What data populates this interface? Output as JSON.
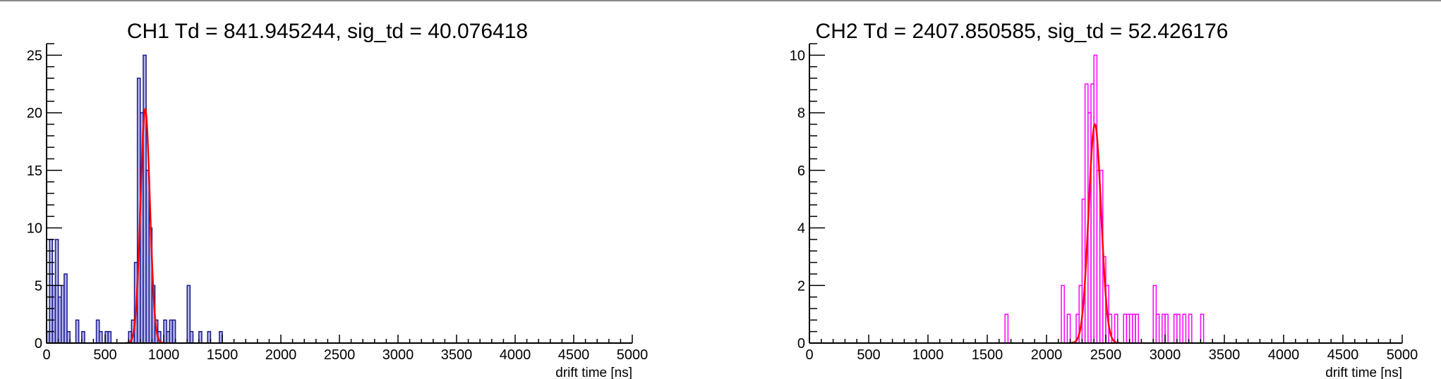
{
  "chart_data": [
    {
      "type": "bar",
      "title": "CH1 Td = 841.945244, sig_td = 40.076418",
      "xlabel": "drift time [ns]",
      "ylabel": "",
      "xlim": [
        0,
        5000
      ],
      "ylim": [
        0,
        26
      ],
      "x_major_ticks": [
        0,
        500,
        1000,
        1500,
        2000,
        2500,
        3000,
        3500,
        4000,
        4500,
        5000
      ],
      "y_major_ticks": [
        0,
        5,
        10,
        15,
        20,
        25
      ],
      "grid": false,
      "hist_color": "#1a1a8c",
      "fill_color": "#b4b4ee",
      "fit_color": "#ff0000",
      "bin_width": 25,
      "bins": [
        {
          "x": 0,
          "count": 1
        },
        {
          "x": 25,
          "count": 9
        },
        {
          "x": 50,
          "count": 5
        },
        {
          "x": 75,
          "count": 9
        },
        {
          "x": 100,
          "count": 4
        },
        {
          "x": 125,
          "count": 5
        },
        {
          "x": 150,
          "count": 6
        },
        {
          "x": 175,
          "count": 1
        },
        {
          "x": 250,
          "count": 2
        },
        {
          "x": 300,
          "count": 1
        },
        {
          "x": 425,
          "count": 2
        },
        {
          "x": 450,
          "count": 1
        },
        {
          "x": 500,
          "count": 1
        },
        {
          "x": 525,
          "count": 1
        },
        {
          "x": 700,
          "count": 1
        },
        {
          "x": 725,
          "count": 2
        },
        {
          "x": 750,
          "count": 7
        },
        {
          "x": 775,
          "count": 23
        },
        {
          "x": 800,
          "count": 20
        },
        {
          "x": 825,
          "count": 25
        },
        {
          "x": 850,
          "count": 15
        },
        {
          "x": 875,
          "count": 10
        },
        {
          "x": 900,
          "count": 5
        },
        {
          "x": 925,
          "count": 2
        },
        {
          "x": 950,
          "count": 1
        },
        {
          "x": 1000,
          "count": 2
        },
        {
          "x": 1025,
          "count": 1
        },
        {
          "x": 1050,
          "count": 2
        },
        {
          "x": 1075,
          "count": 2
        },
        {
          "x": 1200,
          "count": 5
        },
        {
          "x": 1225,
          "count": 1
        },
        {
          "x": 1300,
          "count": 1
        },
        {
          "x": 1375,
          "count": 1
        },
        {
          "x": 1475,
          "count": 1
        }
      ],
      "fit": {
        "type": "gaus",
        "mean": 841.945244,
        "sigma": 40.076418,
        "amplitude": 20.3
      }
    },
    {
      "type": "bar",
      "title": "CH2 Td = 2407.850585, sig_td = 52.426176",
      "xlabel": "drift time [ns]",
      "ylabel": "",
      "xlim": [
        0,
        5000
      ],
      "ylim": [
        0,
        10.4
      ],
      "x_major_ticks": [
        0,
        500,
        1000,
        1500,
        2000,
        2500,
        3000,
        3500,
        4000,
        4500,
        5000
      ],
      "y_major_ticks": [
        0,
        2,
        4,
        6,
        8,
        10
      ],
      "grid": false,
      "hist_color": "#ff00ff",
      "fill_color": "none",
      "fit_color": "#ff0000",
      "bin_width": 25,
      "bins": [
        {
          "x": 1650,
          "count": 1
        },
        {
          "x": 2125,
          "count": 2
        },
        {
          "x": 2175,
          "count": 1
        },
        {
          "x": 2250,
          "count": 1
        },
        {
          "x": 2275,
          "count": 2
        },
        {
          "x": 2300,
          "count": 5
        },
        {
          "x": 2325,
          "count": 9
        },
        {
          "x": 2350,
          "count": 8
        },
        {
          "x": 2375,
          "count": 9
        },
        {
          "x": 2400,
          "count": 10
        },
        {
          "x": 2425,
          "count": 6
        },
        {
          "x": 2450,
          "count": 6
        },
        {
          "x": 2475,
          "count": 3
        },
        {
          "x": 2500,
          "count": 2
        },
        {
          "x": 2525,
          "count": 1
        },
        {
          "x": 2575,
          "count": 1
        },
        {
          "x": 2650,
          "count": 1
        },
        {
          "x": 2675,
          "count": 1
        },
        {
          "x": 2700,
          "count": 1
        },
        {
          "x": 2725,
          "count": 1
        },
        {
          "x": 2750,
          "count": 1
        },
        {
          "x": 2900,
          "count": 2
        },
        {
          "x": 2925,
          "count": 1
        },
        {
          "x": 2975,
          "count": 1
        },
        {
          "x": 3000,
          "count": 1
        },
        {
          "x": 3075,
          "count": 1
        },
        {
          "x": 3100,
          "count": 1
        },
        {
          "x": 3150,
          "count": 1
        },
        {
          "x": 3200,
          "count": 1
        },
        {
          "x": 3300,
          "count": 1
        }
      ],
      "fit": {
        "type": "gaus",
        "mean": 2407.850585,
        "sigma": 52.426176,
        "amplitude": 7.6
      }
    }
  ]
}
